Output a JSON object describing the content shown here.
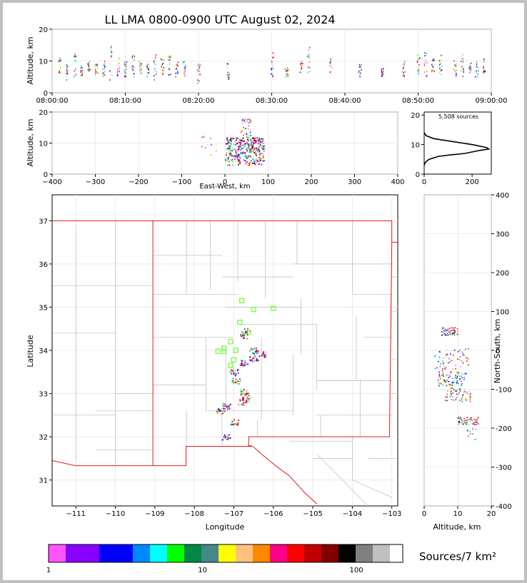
{
  "title": "LL LMA 0800-0900 UTC August 02, 2024",
  "colors": {
    "frame": "#c0c0c0",
    "state_border": "#e00000",
    "county_lines": "#bbbbbb",
    "station_marker": "#66ff33",
    "density_scale": [
      "#ff55ff",
      "#8800ff",
      "#0000ff",
      "#0088ff",
      "#00ffff",
      "#00ff00",
      "#008844",
      "#448888",
      "#ffff00",
      "#ffc080",
      "#ff8800",
      "#ff0088",
      "#ff0000",
      "#c00000",
      "#800000",
      "#000000",
      "#808080",
      "#c0c0c0",
      "#ffffff"
    ]
  },
  "chart_data": [
    {
      "type": "scatter",
      "name": "time-height",
      "ylabel": "Altitude, km",
      "xlim": [
        "08:00:00",
        "09:00:00"
      ],
      "ylim": [
        0,
        20
      ],
      "xticks": [
        "08:00:00",
        "08:10:00",
        "08:20:00",
        "08:30:00",
        "08:40:00",
        "08:50:00",
        "09:00:00"
      ],
      "yticks": [
        0,
        10,
        20
      ],
      "columns": [
        {
          "t": "08:01:00",
          "lo": 5,
          "hi": 11
        },
        {
          "t": "08:02:00",
          "lo": 4,
          "hi": 9
        },
        {
          "t": "08:03:00",
          "lo": 5,
          "hi": 13
        },
        {
          "t": "08:04:00",
          "lo": 5,
          "hi": 9
        },
        {
          "t": "08:05:00",
          "lo": 6,
          "hi": 10
        },
        {
          "t": "08:06:00",
          "lo": 5,
          "hi": 9
        },
        {
          "t": "08:07:00",
          "lo": 5,
          "hi": 10
        },
        {
          "t": "08:08:00",
          "lo": 4,
          "hi": 15
        },
        {
          "t": "08:09:00",
          "lo": 5,
          "hi": 11
        },
        {
          "t": "08:10:00",
          "lo": 5,
          "hi": 10
        },
        {
          "t": "08:11:00",
          "lo": 5,
          "hi": 12
        },
        {
          "t": "08:12:00",
          "lo": 6,
          "hi": 10
        },
        {
          "t": "08:13:00",
          "lo": 5,
          "hi": 9
        },
        {
          "t": "08:14:00",
          "lo": 4,
          "hi": 12
        },
        {
          "t": "08:15:00",
          "lo": 5,
          "hi": 11
        },
        {
          "t": "08:16:00",
          "lo": 5,
          "hi": 12
        },
        {
          "t": "08:17:00",
          "lo": 5,
          "hi": 10
        },
        {
          "t": "08:18:00",
          "lo": 5,
          "hi": 10
        },
        {
          "t": "08:20:00",
          "lo": 3,
          "hi": 11
        },
        {
          "t": "08:24:00",
          "lo": 4,
          "hi": 10
        },
        {
          "t": "08:30:00",
          "lo": 5,
          "hi": 13
        },
        {
          "t": "08:32:00",
          "lo": 5,
          "hi": 8
        },
        {
          "t": "08:34:00",
          "lo": 6,
          "hi": 10
        },
        {
          "t": "08:35:00",
          "lo": 6,
          "hi": 15
        },
        {
          "t": "08:38:00",
          "lo": 6,
          "hi": 11
        },
        {
          "t": "08:42:00",
          "lo": 5,
          "hi": 9
        },
        {
          "t": "08:45:00",
          "lo": 5,
          "hi": 8
        },
        {
          "t": "08:48:00",
          "lo": 5,
          "hi": 10
        },
        {
          "t": "08:50:00",
          "lo": 6,
          "hi": 12
        },
        {
          "t": "08:51:00",
          "lo": 5,
          "hi": 13
        },
        {
          "t": "08:52:00",
          "lo": 6,
          "hi": 11
        },
        {
          "t": "08:53:00",
          "lo": 5,
          "hi": 12
        },
        {
          "t": "08:55:00",
          "lo": 5,
          "hi": 10
        },
        {
          "t": "08:56:00",
          "lo": 5,
          "hi": 12
        },
        {
          "t": "08:57:00",
          "lo": 6,
          "hi": 10
        },
        {
          "t": "08:58:00",
          "lo": 5,
          "hi": 10
        },
        {
          "t": "08:59:00",
          "lo": 6,
          "hi": 11
        }
      ]
    },
    {
      "type": "scatter",
      "name": "east-west-altitude",
      "xlabel": "East-West, km",
      "ylabel": "Altitude, km",
      "xlim": [
        -400,
        400
      ],
      "ylim": [
        0,
        20
      ],
      "xticks": [
        -400,
        -300,
        -200,
        -100,
        0,
        100,
        200,
        300,
        400
      ],
      "yticks": [
        0,
        10,
        20
      ],
      "cluster": {
        "x": [
          0,
          90
        ],
        "y": [
          3,
          12
        ]
      }
    },
    {
      "type": "line",
      "name": "altitude-histogram",
      "annotation": "5,508 sources",
      "xlim": [
        0,
        280
      ],
      "ylim": [
        0,
        21
      ],
      "xticks": [
        0,
        200
      ],
      "yticks": [
        0,
        10,
        20
      ],
      "points": [
        [
          0,
          3
        ],
        [
          5,
          4
        ],
        [
          20,
          5
        ],
        [
          60,
          6
        ],
        [
          110,
          6.5
        ],
        [
          170,
          7
        ],
        [
          230,
          8
        ],
        [
          270,
          8.5
        ],
        [
          260,
          9
        ],
        [
          200,
          10
        ],
        [
          120,
          11
        ],
        [
          40,
          12
        ],
        [
          8,
          13
        ],
        [
          0,
          14
        ]
      ]
    },
    {
      "type": "scatter",
      "name": "plan-view",
      "xlabel": "Longitude",
      "ylabel": "Latitude",
      "xlim": [
        -111.6,
        -102.85
      ],
      "ylim": [
        30.4,
        37.6
      ],
      "xticks": [
        -111,
        -110,
        -109,
        -108,
        -107,
        -106,
        -105,
        -104,
        -103
      ],
      "yticks": [
        31,
        32,
        33,
        34,
        35,
        36,
        37
      ],
      "stations": [
        [
          -106.8,
          35.15
        ],
        [
          -106.5,
          34.95
        ],
        [
          -106.0,
          34.97
        ],
        [
          -106.85,
          34.65
        ],
        [
          -107.08,
          34.2
        ],
        [
          -107.25,
          34.05
        ],
        [
          -107.4,
          33.98
        ],
        [
          -107.25,
          33.98
        ],
        [
          -106.95,
          34.0
        ],
        [
          -107.08,
          33.65
        ],
        [
          -107.0,
          33.78
        ]
      ],
      "source_regions": [
        [
          -106.7,
          34.45
        ],
        [
          -106.75,
          34.35
        ],
        [
          -106.5,
          34.0
        ],
        [
          -106.3,
          33.92
        ],
        [
          -106.5,
          33.82
        ],
        [
          -106.75,
          33.72
        ],
        [
          -107.0,
          33.5
        ],
        [
          -106.95,
          33.3
        ],
        [
          -106.75,
          33.05
        ],
        [
          -106.7,
          32.9
        ],
        [
          -106.8,
          32.8
        ],
        [
          -107.2,
          32.72
        ],
        [
          -107.35,
          32.6
        ],
        [
          -107.0,
          32.35
        ],
        [
          -107.2,
          32.0
        ]
      ]
    },
    {
      "type": "scatter",
      "name": "altitude-north-south",
      "xlabel": "Altitude, km",
      "ylabel": "North-South, km",
      "xlim": [
        0,
        20
      ],
      "ylim": [
        -400,
        400
      ],
      "xticks": [
        0,
        10,
        20
      ],
      "yticks": [
        -400,
        -300,
        -200,
        -100,
        0,
        100,
        200,
        300,
        400
      ],
      "clusters": [
        {
          "x": [
            5,
            10
          ],
          "y": [
            40,
            60
          ]
        },
        {
          "x": [
            3,
            13
          ],
          "y": [
            -60,
            10
          ]
        },
        {
          "x": [
            4,
            12
          ],
          "y": [
            -90,
            -60
          ]
        },
        {
          "x": [
            6,
            14
          ],
          "y": [
            -130,
            -95
          ]
        },
        {
          "x": [
            10,
            16
          ],
          "y": [
            -190,
            -170
          ]
        }
      ]
    }
  ],
  "colorbar": {
    "label": "Sources/7 km²",
    "ticks": [
      "1",
      "10",
      "100"
    ]
  }
}
